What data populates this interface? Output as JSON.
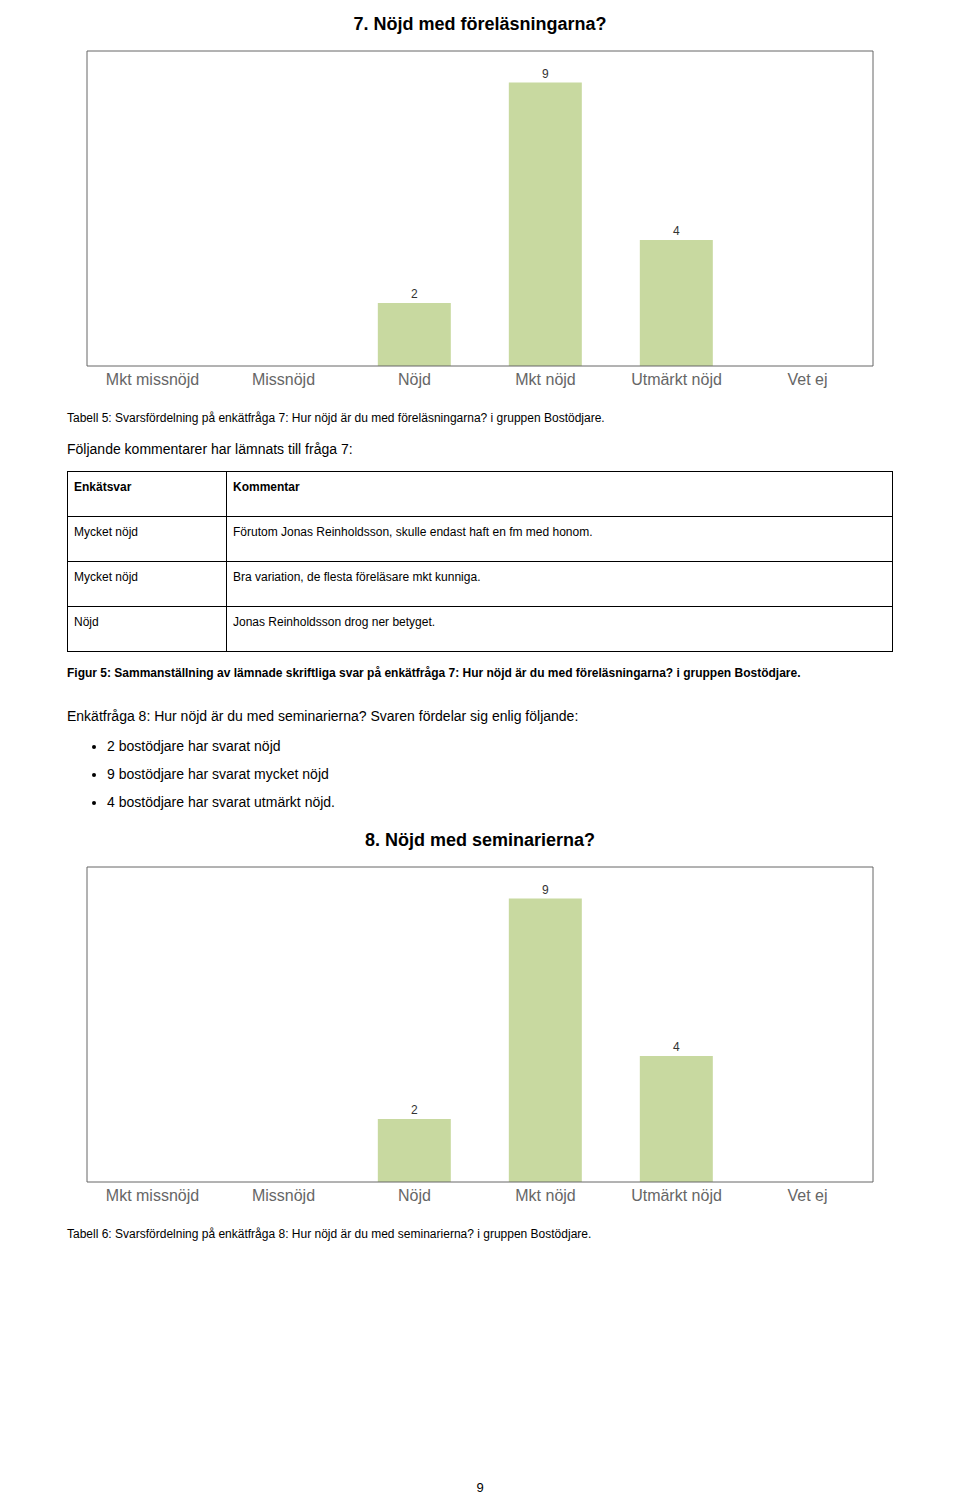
{
  "chart_data": [
    {
      "type": "bar",
      "title": "7. Nöjd med föreläsningarna?",
      "categories": [
        "Mkt missnöjd",
        "Missnöjd",
        "Nöjd",
        "Mkt nöjd",
        "Utmärkt nöjd",
        "Vet ej"
      ],
      "values": [
        0,
        0,
        2,
        9,
        4,
        0
      ],
      "color": "#c8d9a0",
      "ylim": [
        0,
        10
      ],
      "yticks": [],
      "tick_labels": "x",
      "data_labels": true,
      "grid": false
    },
    {
      "type": "bar",
      "title": "8. Nöjd med seminarierna?",
      "categories": [
        "Mkt missnöjd",
        "Missnöjd",
        "Nöjd",
        "Mkt nöjd",
        "Utmärkt nöjd",
        "Vet ej"
      ],
      "values": [
        0,
        0,
        2,
        9,
        4,
        0
      ],
      "color": "#c8d9a0",
      "ylim": [
        0,
        10
      ],
      "yticks": [],
      "tick_labels": "x",
      "data_labels": true,
      "grid": false
    }
  ],
  "annotations": [
    "Tabell 5: Svarsfördelning på enkätfråga 7: Hur nöjd är du med föreläsningarna? i gruppen Bostödjare.",
    "Följande kommentarer har lämnats till fråga 7:",
    "Figur 5: Sammanställning av lämnade skriftliga svar på enkätfråga 7: Hur nöjd är du med föreläsningarna? i gruppen Bostödjare.",
    "Enkätfråga 8: Hur nöjd är du med seminarierna? Svaren fördelar sig enlig följande:",
    "2 bostödjare har svarat nöjd",
    "9 bostödjare har svarat mycket nöjd",
    "4 bostödjare har svarat utmärkt nöjd.",
    "Tabell 6: Svarsfördelning på enkätfråga 8: Hur nöjd är du med seminarierna? i gruppen Bostödjare."
  ],
  "table": {
    "columns": [
      "Enkätsvar",
      "Kommentar"
    ],
    "rows": [
      [
        "Mycket nöjd",
        "Förutom Jonas Reinholdsson, skulle endast haft en fm med honom."
      ],
      [
        "Mycket nöjd",
        "Bra variation, de flesta föreläsare mkt kunniga."
      ],
      [
        "Nöjd",
        "Jonas Reinholdsson drog ner betyget."
      ]
    ]
  },
  "page_number": "9"
}
